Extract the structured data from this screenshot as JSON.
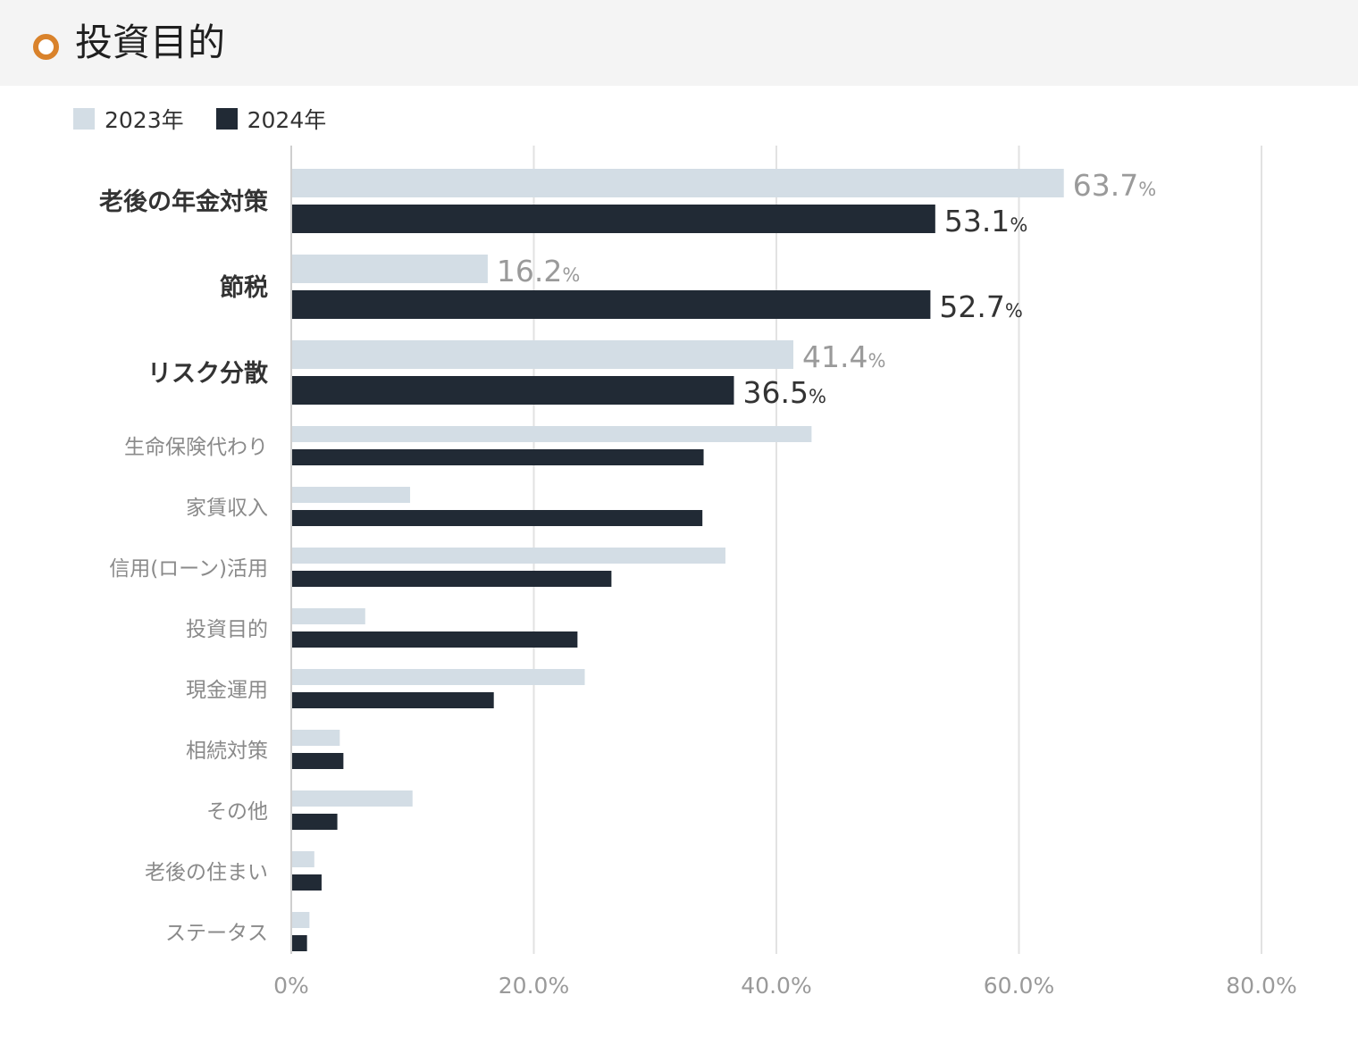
{
  "header": {
    "title": "投資目的",
    "icon": "circle-bullet-icon",
    "accent": "#d9822b"
  },
  "colors": {
    "s2023": "#d3dde5",
    "s2024": "#212a35",
    "label_muted": "#8a8a8a",
    "label_strong": "#333333",
    "grid": "#e2e2e2"
  },
  "chart_data": {
    "type": "bar",
    "orientation": "horizontal",
    "categories": [
      "老後の年金対策",
      "節税",
      "リスク分散",
      "生命保険代わり",
      "家賃収入",
      "信用(ローン)活用",
      "投資目的",
      "現金運用",
      "相続対策",
      "その他",
      "老後の住まい",
      "ステータス"
    ],
    "highlighted_categories": 3,
    "series": [
      {
        "name": "2023年",
        "color": "#d3dde5",
        "values": [
          63.7,
          16.2,
          41.4,
          42.9,
          9.8,
          35.8,
          6.1,
          24.2,
          4.0,
          10.0,
          1.9,
          1.5
        ]
      },
      {
        "name": "2024年",
        "color": "#212a35",
        "values": [
          53.1,
          52.7,
          36.5,
          34.0,
          33.9,
          26.4,
          23.6,
          16.7,
          4.3,
          3.8,
          2.5,
          1.3
        ]
      }
    ],
    "data_labels": {
      "2023年": [
        [
          "63.7",
          "%"
        ],
        [
          "16.2",
          "%"
        ],
        [
          "41.4",
          "%"
        ]
      ],
      "2024年": [
        [
          "53.1",
          "%"
        ],
        [
          "52.7",
          "%"
        ],
        [
          "36.5",
          "%"
        ]
      ]
    },
    "xlim": [
      0,
      80
    ],
    "xticks": [
      "0%",
      "20.0%",
      "40.0%",
      "60.0%",
      "80.0%"
    ],
    "grid": true,
    "legend_position": "top-left"
  }
}
